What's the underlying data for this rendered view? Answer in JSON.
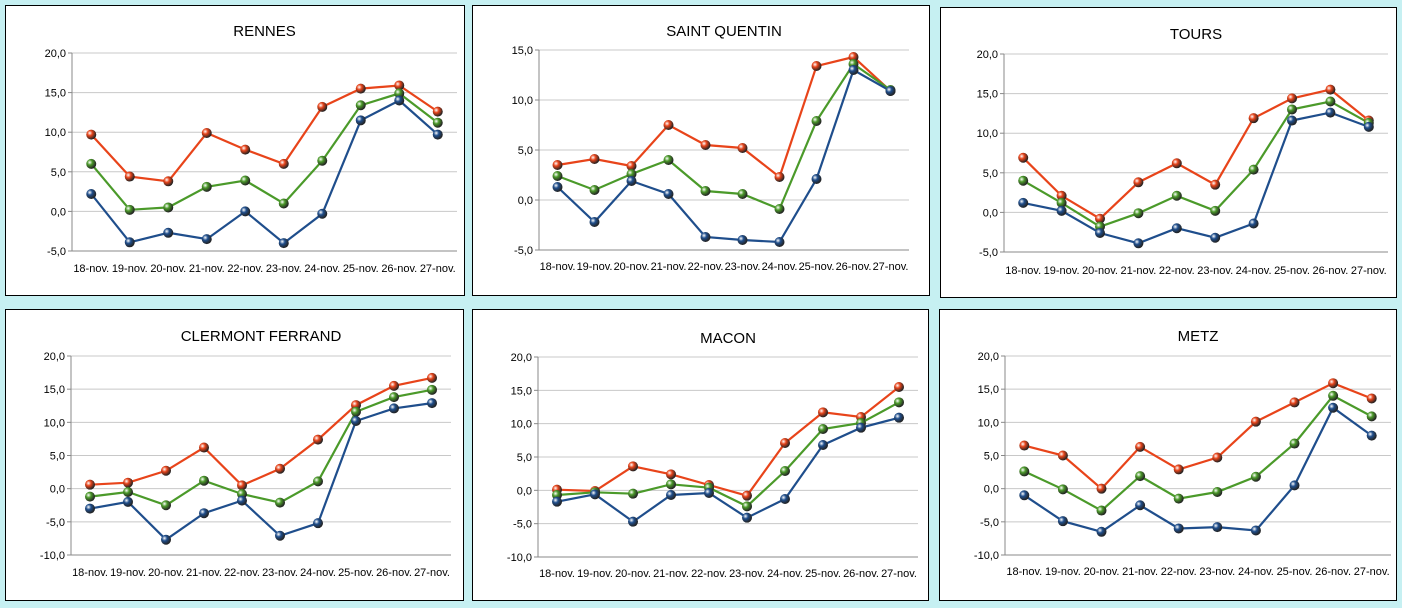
{
  "colors": {
    "red": "#e8441a",
    "green": "#4b9a2a",
    "blue": "#1f4e8c",
    "grid": "#c8c8c8"
  },
  "chart_data": [
    {
      "type": "line",
      "title": "RENNES",
      "categories": [
        "18-nov.",
        "19-nov.",
        "20-nov.",
        "21-nov.",
        "22-nov.",
        "23-nov.",
        "24-nov.",
        "25-nov.",
        "26-nov.",
        "27-nov."
      ],
      "ylim": [
        -5,
        20
      ],
      "yticks": [
        "20,0",
        "15,0",
        "10,0",
        "5,0",
        "0,0",
        "-5,0"
      ],
      "grid": true,
      "series": [
        {
          "color": "red",
          "values": [
            9.7,
            4.4,
            3.8,
            9.9,
            7.8,
            6.0,
            13.2,
            15.5,
            15.9,
            12.6
          ]
        },
        {
          "color": "green",
          "values": [
            6.0,
            0.2,
            0.5,
            3.1,
            3.9,
            1.0,
            6.4,
            13.4,
            14.9,
            11.2
          ]
        },
        {
          "color": "blue",
          "values": [
            2.2,
            -3.9,
            -2.7,
            -3.5,
            0.0,
            -4.0,
            -0.3,
            11.5,
            14.0,
            9.7
          ]
        }
      ]
    },
    {
      "type": "line",
      "title": "SAINT QUENTIN",
      "categories": [
        "18-nov.",
        "19-nov.",
        "20-nov.",
        "21-nov.",
        "22-nov.",
        "23-nov.",
        "24-nov.",
        "25-nov.",
        "26-nov.",
        "27-nov."
      ],
      "ylim": [
        -5,
        15
      ],
      "yticks": [
        "15,0",
        "10,0",
        "5,0",
        "0,0",
        "-5,0"
      ],
      "grid": true,
      "series": [
        {
          "color": "red",
          "values": [
            3.5,
            4.1,
            3.4,
            7.5,
            5.5,
            5.2,
            2.3,
            13.4,
            14.3,
            10.9
          ]
        },
        {
          "color": "green",
          "values": [
            2.4,
            1.0,
            2.6,
            4.0,
            0.9,
            0.6,
            -0.9,
            7.9,
            13.6,
            11.0
          ]
        },
        {
          "color": "blue",
          "values": [
            1.3,
            -2.2,
            1.9,
            0.6,
            -3.7,
            -4.0,
            -4.2,
            2.1,
            13.0,
            10.9
          ]
        }
      ]
    },
    {
      "type": "line",
      "title": "TOURS",
      "categories": [
        "18-nov.",
        "19-nov.",
        "20-nov.",
        "21-nov.",
        "22-nov.",
        "23-nov.",
        "24-nov.",
        "25-nov.",
        "26-nov.",
        "27-nov."
      ],
      "ylim": [
        -5,
        20
      ],
      "yticks": [
        "20,0",
        "15,0",
        "10,0",
        "5,0",
        "0,0",
        "-5,0"
      ],
      "grid": true,
      "series": [
        {
          "color": "red",
          "values": [
            6.9,
            2.1,
            -0.8,
            3.8,
            6.2,
            3.5,
            11.9,
            14.4,
            15.5,
            11.6
          ]
        },
        {
          "color": "green",
          "values": [
            4.0,
            1.2,
            -1.8,
            -0.1,
            2.1,
            0.2,
            5.4,
            13.0,
            14.0,
            11.3
          ]
        },
        {
          "color": "blue",
          "values": [
            1.2,
            0.2,
            -2.6,
            -3.9,
            -2.0,
            -3.2,
            -1.4,
            11.6,
            12.6,
            10.8
          ]
        }
      ]
    },
    {
      "type": "line",
      "title": "CLERMONT FERRAND",
      "categories": [
        "18-nov.",
        "19-nov.",
        "20-nov.",
        "21-nov.",
        "22-nov.",
        "23-nov.",
        "24-nov.",
        "25-nov.",
        "26-nov.",
        "27-nov."
      ],
      "ylim": [
        -10,
        20
      ],
      "yticks": [
        "20,0",
        "15,0",
        "10,0",
        "5,0",
        "0,0",
        "-5,0",
        "-10,0"
      ],
      "grid": true,
      "series": [
        {
          "color": "red",
          "values": [
            0.6,
            0.9,
            2.7,
            6.2,
            0.5,
            3.0,
            7.4,
            12.6,
            15.5,
            16.7
          ]
        },
        {
          "color": "green",
          "values": [
            -1.2,
            -0.5,
            -2.5,
            1.2,
            -0.8,
            -2.1,
            1.1,
            11.6,
            13.8,
            14.9
          ]
        },
        {
          "color": "blue",
          "values": [
            -3.0,
            -2.0,
            -7.7,
            -3.7,
            -1.8,
            -7.1,
            -5.2,
            10.2,
            12.1,
            12.9
          ]
        }
      ]
    },
    {
      "type": "line",
      "title": "MACON",
      "categories": [
        "18-nov.",
        "19-nov.",
        "20-nov.",
        "21-nov.",
        "22-nov.",
        "23-nov.",
        "24-nov.",
        "25-nov.",
        "26-nov.",
        "27-nov."
      ],
      "ylim": [
        -10,
        20
      ],
      "yticks": [
        "20,0",
        "15,0",
        "10,0",
        "5,0",
        "0,0",
        "-5,0",
        "-10,0"
      ],
      "grid": true,
      "series": [
        {
          "color": "red",
          "values": [
            0.1,
            -0.1,
            3.6,
            2.4,
            0.8,
            -0.8,
            7.1,
            11.7,
            11.0,
            15.5
          ]
        },
        {
          "color": "green",
          "values": [
            -0.7,
            -0.3,
            -0.5,
            0.9,
            0.4,
            -2.4,
            2.9,
            9.2,
            10.1,
            13.2
          ]
        },
        {
          "color": "blue",
          "values": [
            -1.7,
            -0.6,
            -4.7,
            -0.7,
            -0.4,
            -4.1,
            -1.3,
            6.8,
            9.4,
            10.9
          ]
        }
      ]
    },
    {
      "type": "line",
      "title": "METZ",
      "categories": [
        "18-nov.",
        "19-nov.",
        "20-nov.",
        "21-nov.",
        "22-nov.",
        "23-nov.",
        "24-nov.",
        "25-nov.",
        "26-nov.",
        "27-nov."
      ],
      "ylim": [
        -10,
        20
      ],
      "yticks": [
        "20,0",
        "15,0",
        "10,0",
        "5,0",
        "0,0",
        "-5,0",
        "-10,0"
      ],
      "grid": true,
      "series": [
        {
          "color": "red",
          "values": [
            6.5,
            5.0,
            0.0,
            6.3,
            2.9,
            4.7,
            10.1,
            13.0,
            15.9,
            13.6
          ]
        },
        {
          "color": "green",
          "values": [
            2.6,
            -0.1,
            -3.3,
            1.9,
            -1.5,
            -0.5,
            1.8,
            6.8,
            14.0,
            10.9
          ]
        },
        {
          "color": "blue",
          "values": [
            -1.0,
            -4.9,
            -6.5,
            -2.5,
            -6.0,
            -5.8,
            -6.3,
            0.5,
            12.2,
            8.0
          ]
        }
      ]
    }
  ]
}
